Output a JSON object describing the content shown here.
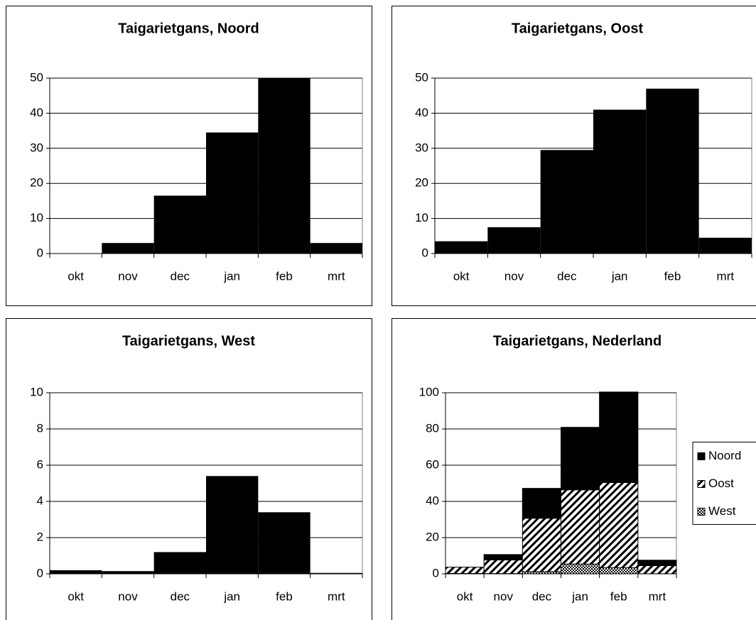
{
  "chart_data": [
    {
      "type": "bar",
      "title": "Taigarietgans, Noord",
      "categories": [
        "okt",
        "nov",
        "dec",
        "jan",
        "feb",
        "mrt"
      ],
      "values": [
        0,
        3,
        16.5,
        34.5,
        50,
        3
      ],
      "color": "#000000",
      "ylim": [
        0,
        50
      ],
      "yticks": [
        0,
        10,
        20,
        30,
        40,
        50
      ],
      "grid": true
    },
    {
      "type": "bar",
      "title": "Taigarietgans, Oost",
      "categories": [
        "okt",
        "nov",
        "dec",
        "jan",
        "feb",
        "mrt"
      ],
      "values": [
        3.5,
        7.5,
        29.5,
        41,
        47,
        4.5
      ],
      "color": "#000000",
      "ylim": [
        0,
        50
      ],
      "yticks": [
        0,
        10,
        20,
        30,
        40,
        50
      ],
      "grid": true
    },
    {
      "type": "bar",
      "title": "Taigarietgans, West",
      "categories": [
        "okt",
        "nov",
        "dec",
        "jan",
        "feb",
        "mrt"
      ],
      "values": [
        0.2,
        0.15,
        1.2,
        5.4,
        3.4,
        0.05
      ],
      "color": "#000000",
      "ylim": [
        0,
        10
      ],
      "yticks": [
        0,
        2,
        4,
        6,
        8,
        10
      ],
      "grid": true
    },
    {
      "type": "stacked_bar",
      "title": "Taigarietgans, Nederland",
      "categories": [
        "okt",
        "nov",
        "dec",
        "jan",
        "feb",
        "mrt"
      ],
      "series": [
        {
          "name": "Noord",
          "color": "#000000",
          "values": [
            0,
            3,
            16.5,
            34.5,
            50,
            3
          ]
        },
        {
          "name": "Oost",
          "color": "#000000",
          "values": [
            3.5,
            7.5,
            29.5,
            41,
            47,
            4.5
          ]
        },
        {
          "name": "West",
          "color": "#000000",
          "values": [
            0.2,
            0.15,
            1.2,
            5.4,
            3.4,
            0.05
          ]
        }
      ],
      "ylim": [
        0,
        100
      ],
      "yticks": [
        0,
        20,
        40,
        60,
        80,
        100
      ],
      "grid": true,
      "legend": "right"
    }
  ]
}
